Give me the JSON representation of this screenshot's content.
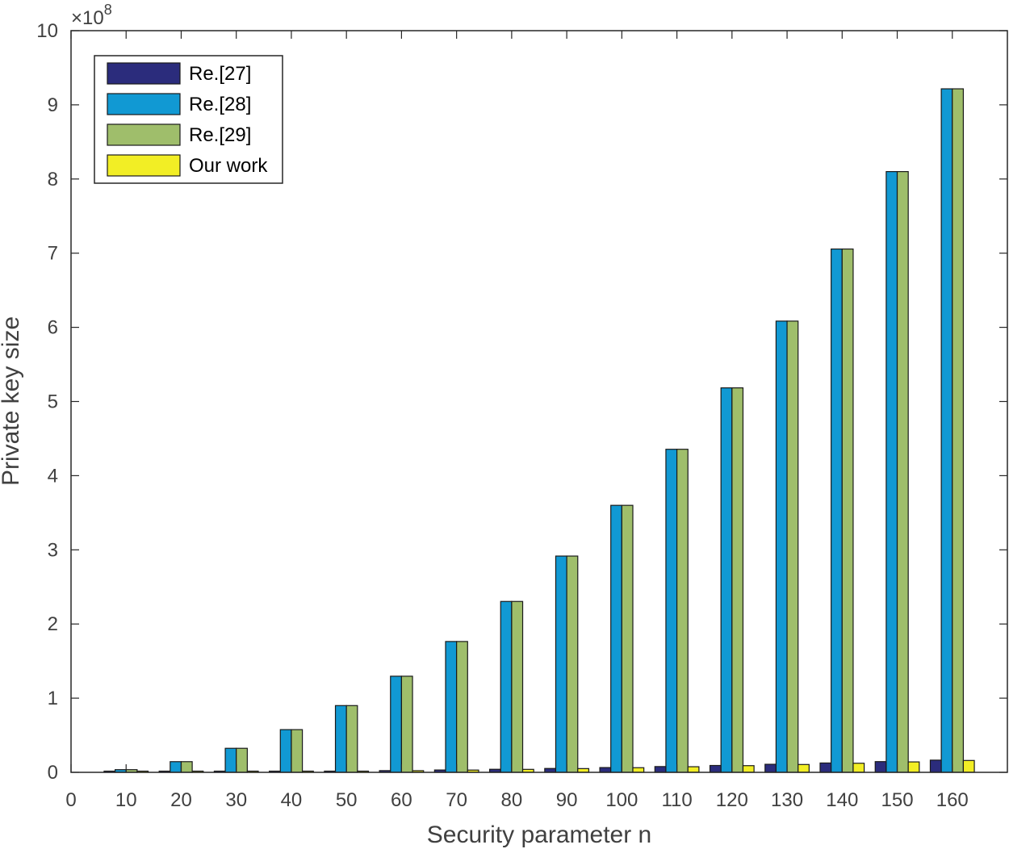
{
  "chart_data": {
    "type": "bar",
    "xlabel": "Security parameter n",
    "ylabel": "Private key size",
    "y_multiplier": "×10",
    "y_exponent": "8",
    "x_ticks": [
      "0",
      "10",
      "20",
      "30",
      "40",
      "50",
      "60",
      "70",
      "80",
      "90",
      "100",
      "110",
      "120",
      "130",
      "140",
      "150",
      "160"
    ],
    "y_ticks": [
      "0",
      "1",
      "2",
      "3",
      "4",
      "5",
      "6",
      "7",
      "8",
      "9",
      "10"
    ],
    "xlim": [
      0,
      170
    ],
    "ylim": [
      0,
      10
    ],
    "y_unit": "×10^8",
    "categories": [
      10,
      20,
      30,
      40,
      50,
      60,
      70,
      80,
      90,
      100,
      110,
      120,
      130,
      140,
      150,
      160
    ],
    "series": [
      {
        "name": "Re.[27]",
        "color": "#2b2c7c",
        "values": [
          0.0007,
          0.0027,
          0.0059,
          0.0104,
          0.0162,
          0.0232,
          0.0316,
          0.0412,
          0.0521,
          0.0643,
          0.0778,
          0.0925,
          0.1086,
          0.126,
          0.1446,
          0.1645
        ]
      },
      {
        "name": "Re.[28]",
        "color": "#1199d3",
        "values": [
          0.036,
          0.144,
          0.324,
          0.576,
          0.9,
          1.296,
          1.764,
          2.304,
          2.916,
          3.6,
          4.356,
          5.184,
          6.084,
          7.056,
          8.1,
          9.216
        ]
      },
      {
        "name": "Re.[29]",
        "color": "#9fbe6b",
        "values": [
          0.036,
          0.144,
          0.324,
          0.576,
          0.9,
          1.296,
          1.764,
          2.304,
          2.916,
          3.6,
          4.356,
          5.184,
          6.084,
          7.056,
          8.1,
          9.216
        ]
      },
      {
        "name": "Our work",
        "color": "#f2ee25",
        "values": [
          0.0006,
          0.0025,
          0.0056,
          0.01,
          0.0156,
          0.0225,
          0.0306,
          0.04,
          0.0506,
          0.0625,
          0.0756,
          0.09,
          0.1056,
          0.1225,
          0.1406,
          0.16
        ]
      }
    ],
    "legend_position": "top-left",
    "grid": false
  }
}
